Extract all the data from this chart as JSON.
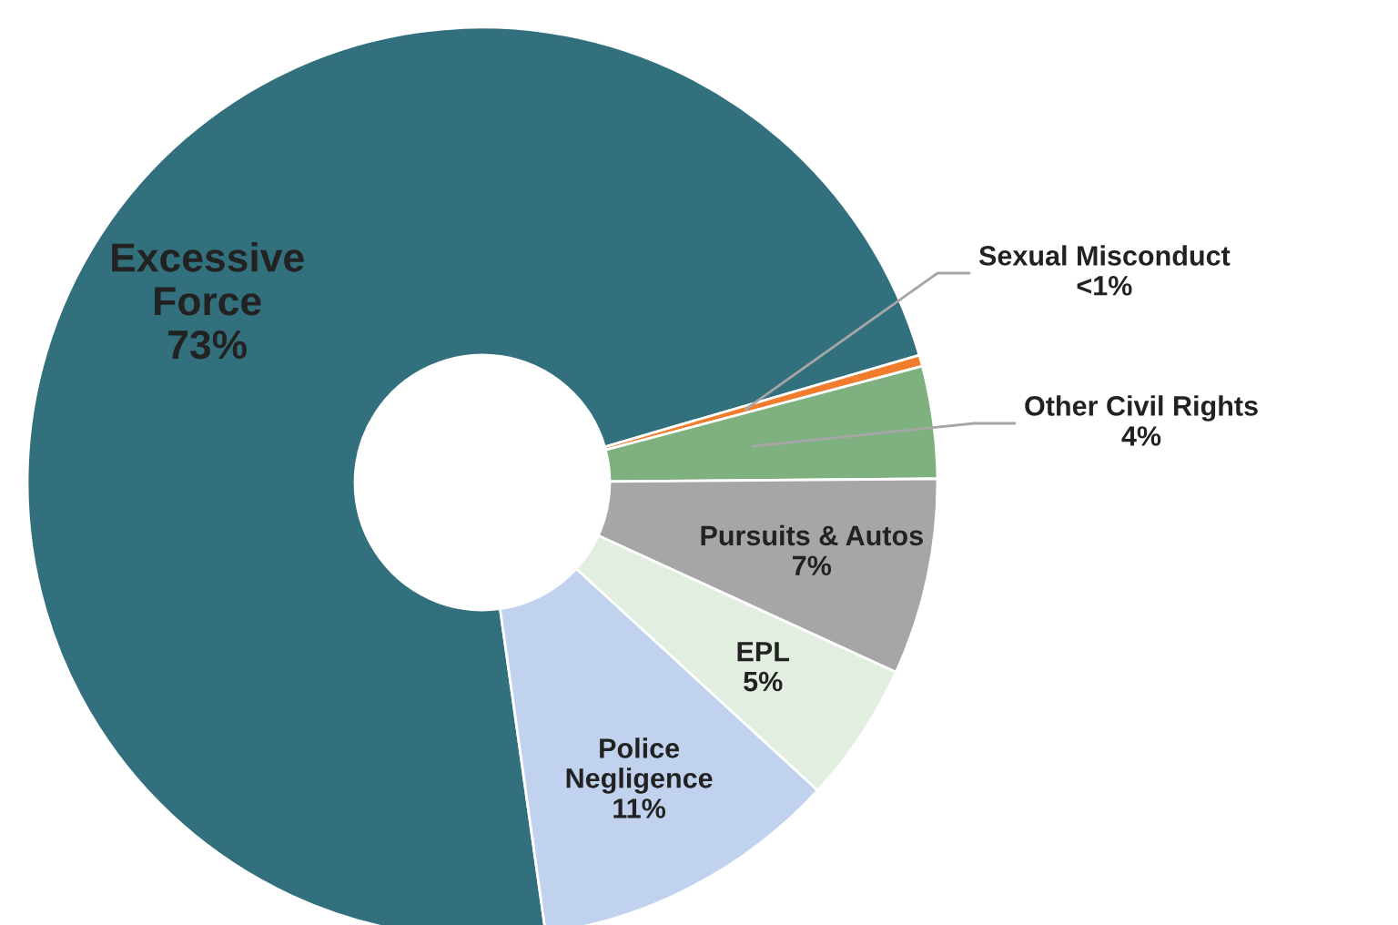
{
  "chart_data": {
    "type": "donut",
    "categories": [
      "Excessive Force",
      "Sexual Misconduct",
      "Other Civil Rights",
      "Pursuits & Autos",
      "EPL",
      "Police Negligence"
    ],
    "values": [
      73,
      0.4,
      4,
      7,
      5,
      11
    ],
    "value_labels": [
      "73%",
      "<1%",
      "4%",
      "7%",
      "5%",
      "11%"
    ],
    "colors": [
      "#33707e",
      "#f07c2c",
      "#7fb07f",
      "#a6a6a6",
      "#e2eedf",
      "#c0d2ee"
    ],
    "legend": false
  }
}
